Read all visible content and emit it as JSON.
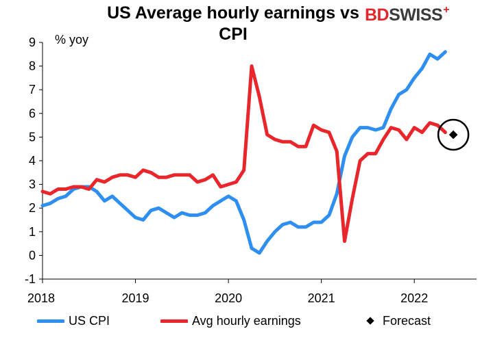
{
  "chart_data": {
    "type": "line",
    "title": "US Average hourly earnings vs CPI",
    "ylabel": "% yoy",
    "xlabel": "",
    "ylim": [
      -1,
      9
    ],
    "yticks": [
      "-1",
      "0",
      "1",
      "2",
      "3",
      "4",
      "5",
      "6",
      "7",
      "8",
      "9"
    ],
    "xticks": [
      {
        "label": "2018",
        "x": 2018
      },
      {
        "label": "2019",
        "x": 2019
      },
      {
        "label": "2020",
        "x": 2020
      },
      {
        "label": "2021",
        "x": 2021
      },
      {
        "label": "2022",
        "x": 2022
      }
    ],
    "xlim": [
      2018,
      2022.67
    ],
    "series": [
      {
        "name": "US CPI",
        "color": "#2e8ff0",
        "start": 2018.0,
        "step_months": 1,
        "values": [
          2.1,
          2.2,
          2.4,
          2.5,
          2.8,
          2.9,
          2.9,
          2.7,
          2.3,
          2.5,
          2.2,
          1.9,
          1.6,
          1.5,
          1.9,
          2.0,
          1.8,
          1.6,
          1.8,
          1.7,
          1.7,
          1.8,
          2.1,
          2.3,
          2.5,
          2.3,
          1.5,
          0.3,
          0.1,
          0.6,
          1.0,
          1.3,
          1.4,
          1.2,
          1.2,
          1.4,
          1.4,
          1.7,
          2.6,
          4.2,
          5.0,
          5.4,
          5.4,
          5.3,
          5.4,
          6.2,
          6.8,
          7.0,
          7.5,
          7.9,
          8.5,
          8.3,
          8.6
        ]
      },
      {
        "name": "Avg hourly earnings",
        "color": "#e8262b",
        "start": 2018.0,
        "step_months": 1,
        "values": [
          2.7,
          2.6,
          2.8,
          2.8,
          2.9,
          2.9,
          2.8,
          3.2,
          3.1,
          3.3,
          3.4,
          3.4,
          3.3,
          3.6,
          3.5,
          3.3,
          3.3,
          3.4,
          3.4,
          3.4,
          3.1,
          3.2,
          3.4,
          2.9,
          3.0,
          3.1,
          3.6,
          8.0,
          6.7,
          5.1,
          4.9,
          4.8,
          4.8,
          4.6,
          4.6,
          5.5,
          5.3,
          5.2,
          4.4,
          0.6,
          2.4,
          4.0,
          4.3,
          4.3,
          4.9,
          5.4,
          5.3,
          4.9,
          5.4,
          5.2,
          5.6,
          5.5,
          5.2
        ]
      }
    ],
    "forecast": {
      "name": "Forecast",
      "x": 2022.42,
      "y": 5.1,
      "color": "#000000"
    },
    "annotations": [
      {
        "type": "circle",
        "around": "forecast"
      }
    ]
  },
  "logo": {
    "part1": "BD",
    "part2": "SWISS",
    "mark": "+"
  }
}
